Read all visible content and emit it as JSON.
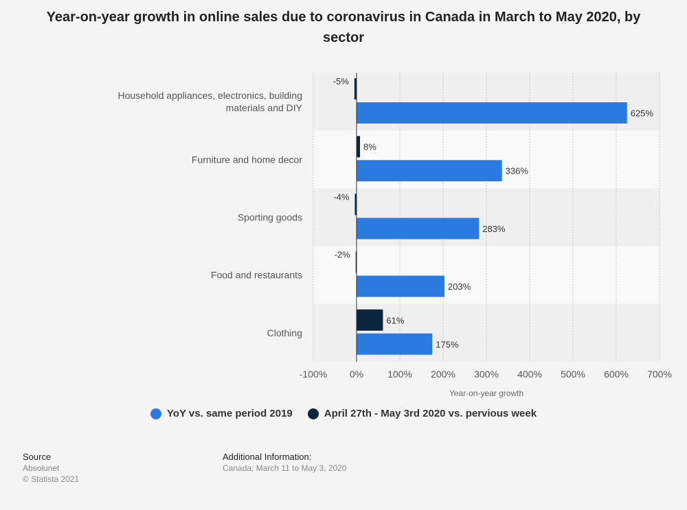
{
  "chart_data": {
    "type": "bar",
    "orientation": "horizontal",
    "title": "Year-on-year growth in online sales due to coronavirus in Canada in March to May 2020, by sector",
    "categories": [
      [
        "Household appliances, electronics, building",
        "materials and DIY"
      ],
      [
        "Furniture and home decor"
      ],
      [
        "Sporting goods"
      ],
      [
        "Food and restaurants"
      ],
      [
        "Clothing"
      ]
    ],
    "series": [
      {
        "name": "April 27th - May 3rd 2020 vs. pervious week",
        "color": "#0d2640",
        "values": [
          -5,
          8,
          -4,
          -2,
          61
        ],
        "labels": [
          "-5%",
          "8%",
          "-4%",
          "-2%",
          "61%"
        ]
      },
      {
        "name": "YoY vs. same period 2019",
        "color": "#2b7ae0",
        "values": [
          625,
          336,
          283,
          203,
          175
        ],
        "labels": [
          "625%",
          "336%",
          "283%",
          "203%",
          "175%"
        ]
      }
    ],
    "xlim": [
      -100,
      700
    ],
    "xticks": [
      -100,
      0,
      100,
      200,
      300,
      400,
      500,
      600,
      700
    ],
    "xtick_labels": [
      "-100%",
      "0%",
      "100%",
      "200%",
      "300%",
      "400%",
      "500%",
      "600%",
      "700%"
    ],
    "xlabel": "Year-on-year growth",
    "grid": true,
    "legend_position": "bottom",
    "legend": [
      {
        "label": "YoY vs. same period 2019",
        "color": "#2b7ae0"
      },
      {
        "label": "April 27th - May 3rd 2020 vs. pervious week",
        "color": "#0d2640"
      }
    ]
  },
  "footer": {
    "source_heading": "Source",
    "source_name": "Absolunet",
    "copyright": "© Statista 2021",
    "info_heading": "Additional Information:",
    "info_text": "Canada; March 11 to May 3, 2020"
  }
}
